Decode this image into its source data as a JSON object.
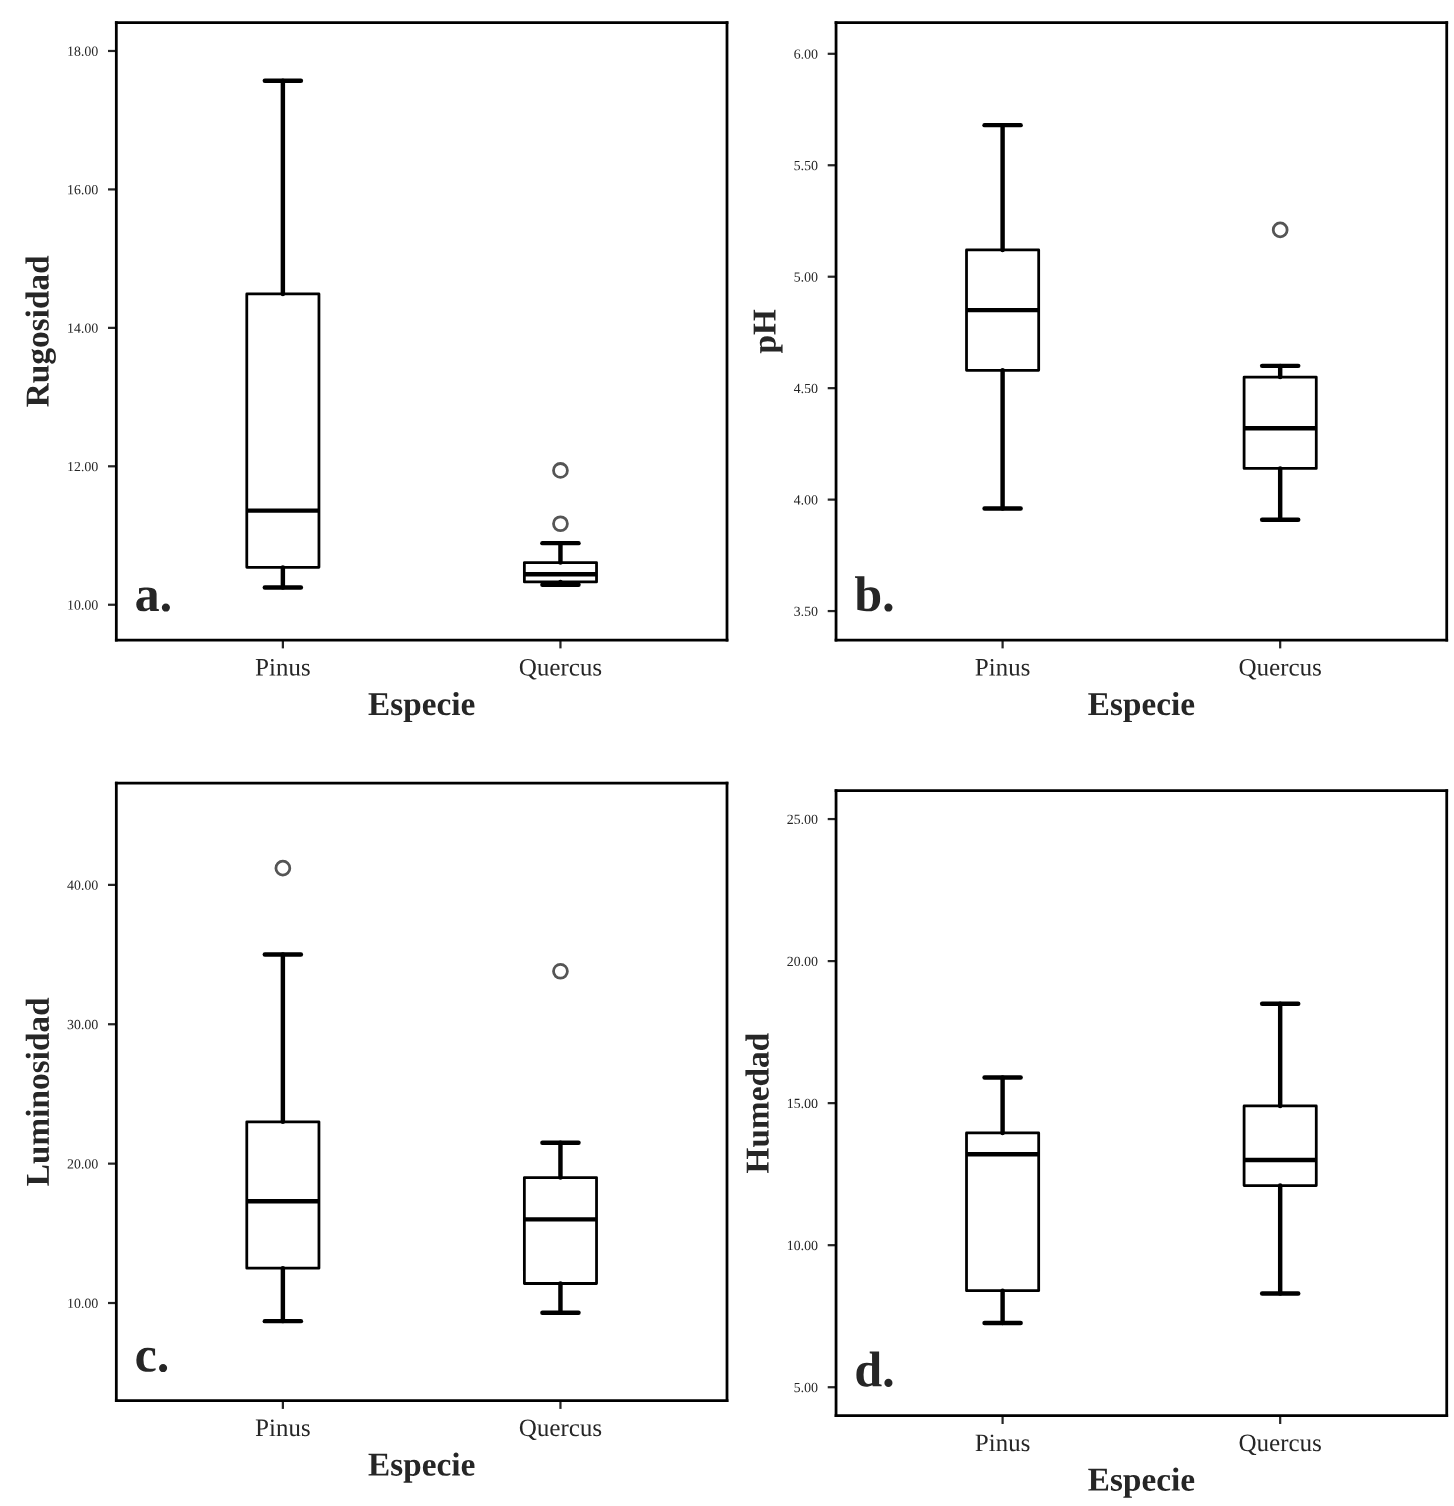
{
  "chart_data": [
    {
      "type": "box",
      "ylabel": "Rugosidad",
      "xlabel": "Especie",
      "categories": [
        "Pinus",
        "Quercus"
      ],
      "annotations": [
        "a."
      ],
      "ylim": [
        9.49,
        18.41
      ],
      "yticks": [
        {
          "value": 10,
          "label": "10.00"
        },
        {
          "value": 12,
          "label": "12.00"
        },
        {
          "value": 14,
          "label": "14.00"
        },
        {
          "value": 16,
          "label": "16.00"
        },
        {
          "value": 18,
          "label": "18.00"
        }
      ],
      "grid": false,
      "boxes": [
        {
          "low": 10.25,
          "q1": 10.54,
          "median": 11.36,
          "q3": 14.49,
          "high": 17.57
        },
        {
          "low": 10.29,
          "q1": 10.33,
          "median": 10.44,
          "q3": 10.61,
          "high": 10.89,
          "outliers": [
            11.17,
            11.94
          ]
        }
      ]
    },
    {
      "type": "box",
      "ylabel": "pH",
      "xlabel": "Especie",
      "categories": [
        "Pinus",
        "Quercus"
      ],
      "annotations": [
        "b."
      ],
      "ylim": [
        3.37,
        6.14
      ],
      "yticks": [
        {
          "value": 3.5,
          "label": "3.50"
        },
        {
          "value": 4,
          "label": "4.00"
        },
        {
          "value": 4.5,
          "label": "4.50"
        },
        {
          "value": 5,
          "label": "5.00"
        },
        {
          "value": 5.5,
          "label": "5.50"
        },
        {
          "value": 6,
          "label": "6.00"
        }
      ],
      "grid": false,
      "boxes": [
        {
          "low": 3.96,
          "q1": 4.58,
          "median": 4.85,
          "q3": 5.12,
          "high": 5.68
        },
        {
          "low": 3.91,
          "q1": 4.14,
          "median": 4.32,
          "q3": 4.55,
          "high": 4.6,
          "outliers": [
            5.21
          ]
        }
      ]
    },
    {
      "type": "box",
      "ylabel": "Luminosidad",
      "xlabel": "Especie",
      "categories": [
        "Pinus",
        "Quercus"
      ],
      "annotations": [
        "c."
      ],
      "ylim": [
        3.0,
        47.3
      ],
      "yticks": [
        {
          "value": 10,
          "label": "10.00"
        },
        {
          "value": 20,
          "label": "20.00"
        },
        {
          "value": 30,
          "label": "30.00"
        },
        {
          "value": 40,
          "label": "40.00"
        }
      ],
      "grid": false,
      "boxes": [
        {
          "low": 8.7,
          "q1": 12.5,
          "median": 17.3,
          "q3": 23.0,
          "high": 35.0,
          "outliers": [
            41.2
          ]
        },
        {
          "low": 9.3,
          "q1": 11.4,
          "median": 16.0,
          "q3": 19.0,
          "high": 21.5,
          "outliers": [
            33.8
          ]
        }
      ]
    },
    {
      "type": "box",
      "ylabel": "Humedad",
      "xlabel": "Especie",
      "categories": [
        "Pinus",
        "Quercus"
      ],
      "annotations": [
        "d."
      ],
      "ylim": [
        4.0,
        26.0
      ],
      "yticks": [
        {
          "value": 5,
          "label": "5.00"
        },
        {
          "value": 10,
          "label": "10.00"
        },
        {
          "value": 15,
          "label": "15.00"
        },
        {
          "value": 20,
          "label": "20.00"
        },
        {
          "value": 25,
          "label": "25.00"
        }
      ],
      "grid": false,
      "boxes": [
        {
          "low": 7.26,
          "q1": 8.4,
          "median": 13.2,
          "q3": 13.95,
          "high": 15.9
        },
        {
          "low": 8.3,
          "q1": 12.1,
          "median": 13.0,
          "q3": 14.9,
          "high": 18.5
        }
      ]
    }
  ]
}
